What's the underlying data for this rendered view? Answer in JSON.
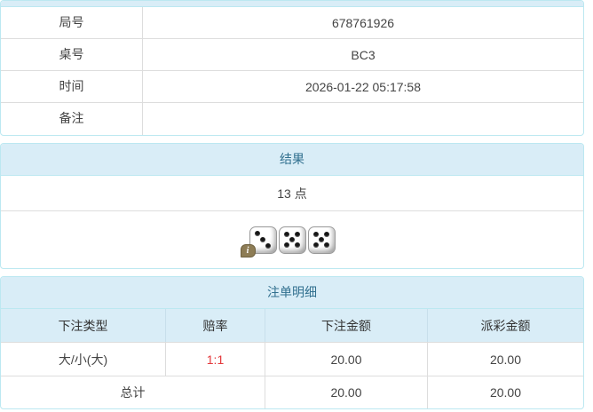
{
  "info_table": {
    "rows": [
      {
        "label": "局号",
        "value": "678761926"
      },
      {
        "label": "桌号",
        "value": "BC3"
      },
      {
        "label": "时间",
        "value": "2026-01-22 05:17:58"
      },
      {
        "label": "备注",
        "value": ""
      }
    ]
  },
  "result_panel": {
    "title": "结果",
    "points": "13 点",
    "dice": [
      3,
      5,
      5
    ],
    "info_badge": "i"
  },
  "bets_panel": {
    "title": "注单明细",
    "columns": [
      "下注类型",
      "赔率",
      "下注金额",
      "派彩金额"
    ],
    "rows": [
      {
        "type": "大/小(大)",
        "odds": "1:1",
        "bet": "20.00",
        "payout": "20.00"
      }
    ],
    "total": {
      "label": "总计",
      "bet": "20.00",
      "payout": "20.00"
    }
  },
  "colors": {
    "panel_border": "#bce8f1",
    "panel_heading_bg": "#d9edf7",
    "heading_text": "#31708f",
    "odds_red": "#e4393c",
    "table_border": "#dddddd"
  }
}
